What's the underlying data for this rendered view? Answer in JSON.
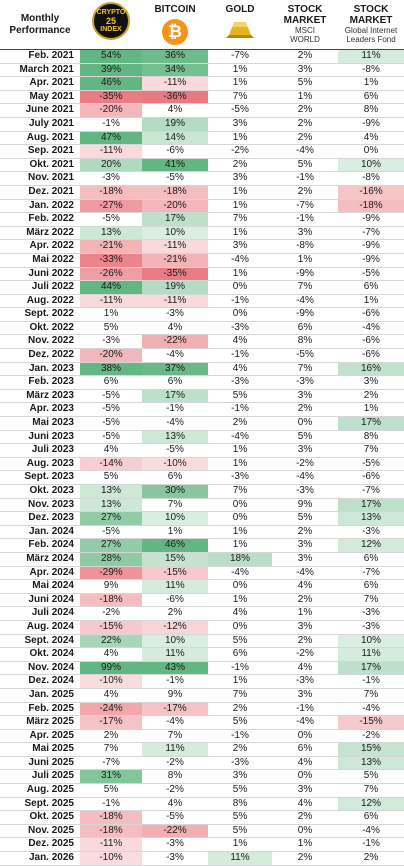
{
  "headers": {
    "month": "Monthly Performance",
    "crypto25_logo": [
      "CRYPTO",
      "25",
      "INDEX"
    ],
    "bitcoin": "BITCOIN",
    "bitcoin_symbol": "₿",
    "gold": "GOLD",
    "msci_title": "STOCK MARKET",
    "msci_sub": "MSCI WORLD",
    "gif_title": "STOCK MARKET",
    "gif_sub": "Global Internet Leaders Fond"
  },
  "colors": {
    "positive": "#2e9e57",
    "negative": "#e0404a",
    "logo_gold": "#f2c230",
    "bitcoin": "#f7931a"
  },
  "chart_data": {
    "type": "table",
    "columns": [
      "Monthly Performance",
      "CRYPTO 25 INDEX",
      "BITCOIN",
      "GOLD",
      "STOCK MARKET MSCI WORLD",
      "STOCK MARKET Global Internet Leaders Fond"
    ],
    "rows": [
      [
        "Feb. 2021",
        "54%",
        "36%",
        "-7%",
        "2%",
        "11%"
      ],
      [
        "March 2021",
        "39%",
        "34%",
        "1%",
        "3%",
        "-8%"
      ],
      [
        "Apr. 2021",
        "46%",
        "-11%",
        "1%",
        "5%",
        "1%"
      ],
      [
        "May 2021",
        "-35%",
        "-36%",
        "7%",
        "1%",
        "6%"
      ],
      [
        "June 2021",
        "-20%",
        "4%",
        "-5%",
        "2%",
        "8%"
      ],
      [
        "July 2021",
        "-1%",
        "19%",
        "3%",
        "2%",
        "-9%"
      ],
      [
        "Aug. 2021",
        "47%",
        "14%",
        "1%",
        "2%",
        "4%"
      ],
      [
        "Sep. 2021",
        "-11%",
        "-6%",
        "-2%",
        "-4%",
        "0%"
      ],
      [
        "Okt. 2021",
        "20%",
        "41%",
        "2%",
        "5%",
        "10%"
      ],
      [
        "Nov. 2021",
        "-3%",
        "-5%",
        "3%",
        "-1%",
        "-8%"
      ],
      [
        "Dez. 2021",
        "-18%",
        "-18%",
        "1%",
        "2%",
        "-16%"
      ],
      [
        "Jan. 2022",
        "-27%",
        "-20%",
        "1%",
        "-7%",
        "-18%"
      ],
      [
        "Feb. 2022",
        "-5%",
        "17%",
        "7%",
        "-1%",
        "-9%"
      ],
      [
        "März 2022",
        "13%",
        "10%",
        "1%",
        "3%",
        "-7%"
      ],
      [
        "Apr. 2022",
        "-21%",
        "-11%",
        "3%",
        "-8%",
        "-9%"
      ],
      [
        "Mai 2022",
        "-33%",
        "-21%",
        "-4%",
        "1%",
        "-9%"
      ],
      [
        "Juni 2022",
        "-26%",
        "-35%",
        "1%",
        "-9%",
        "-5%"
      ],
      [
        "Juli 2022",
        "44%",
        "19%",
        "0%",
        "7%",
        "6%"
      ],
      [
        "Aug. 2022",
        "-11%",
        "-11%",
        "-1%",
        "-4%",
        "1%"
      ],
      [
        "Sept. 2022",
        "1%",
        "-3%",
        "0%",
        "-9%",
        "-6%"
      ],
      [
        "Okt. 2022",
        "5%",
        "4%",
        "-3%",
        "6%",
        "-4%"
      ],
      [
        "Nov. 2022",
        "-3%",
        "-22%",
        "4%",
        "8%",
        "-6%"
      ],
      [
        "Dez. 2022",
        "-20%",
        "-4%",
        "-1%",
        "-5%",
        "-6%"
      ],
      [
        "Jan. 2023",
        "38%",
        "37%",
        "4%",
        "7%",
        "16%"
      ],
      [
        "Feb. 2023",
        "6%",
        "6%",
        "-3%",
        "-3%",
        "3%"
      ],
      [
        "März 2023",
        "-5%",
        "17%",
        "5%",
        "3%",
        "2%"
      ],
      [
        "Apr. 2023",
        "-5%",
        "-1%",
        "-1%",
        "2%",
        "1%"
      ],
      [
        "Mai 2023",
        "-5%",
        "-4%",
        "2%",
        "0%",
        "17%"
      ],
      [
        "Juni 2023",
        "-5%",
        "13%",
        "-4%",
        "5%",
        "8%"
      ],
      [
        "Juli 2023",
        "4%",
        "-5%",
        "1%",
        "3%",
        "7%"
      ],
      [
        "Aug. 2023",
        "-14%",
        "-10%",
        "1%",
        "-2%",
        "-5%"
      ],
      [
        "Sept. 2023",
        "5%",
        "6%",
        "-3%",
        "-4%",
        "-6%"
      ],
      [
        "Okt. 2023",
        "13%",
        "30%",
        "7%",
        "-3%",
        "-7%"
      ],
      [
        "Nov. 2023",
        "13%",
        "7%",
        "0%",
        "9%",
        "17%"
      ],
      [
        "Dez. 2023",
        "27%",
        "10%",
        "0%",
        "5%",
        "13%"
      ],
      [
        "Jan. 2024",
        "-5%",
        "1%",
        "1%",
        "2%",
        "-3%"
      ],
      [
        "Feb. 2024",
        "27%",
        "46%",
        "1%",
        "3%",
        "12%"
      ],
      [
        "März 2024",
        "28%",
        "15%",
        "18%",
        "3%",
        "6%"
      ],
      [
        "Apr. 2024",
        "-29%",
        "-15%",
        "-4%",
        "-4%",
        "-7%"
      ],
      [
        "Mai 2024",
        "9%",
        "11%",
        "0%",
        "4%",
        "6%"
      ],
      [
        "Juni 2024",
        "-18%",
        "-6%",
        "1%",
        "2%",
        "7%"
      ],
      [
        "Juli 2024",
        "-2%",
        "2%",
        "4%",
        "1%",
        "-3%"
      ],
      [
        "Aug. 2024",
        "-15%",
        "-12%",
        "0%",
        "3%",
        "-3%"
      ],
      [
        "Sept. 2024",
        "22%",
        "10%",
        "5%",
        "2%",
        "10%"
      ],
      [
        "Okt. 2024",
        "4%",
        "11%",
        "6%",
        "-2%",
        "11%"
      ],
      [
        "Nov. 2024",
        "99%",
        "43%",
        "-1%",
        "4%",
        "17%"
      ],
      [
        "Dez. 2024",
        "-10%",
        "-1%",
        "1%",
        "-3%",
        "-1%"
      ],
      [
        "Jan. 2025",
        "4%",
        "9%",
        "7%",
        "3%",
        "7%"
      ],
      [
        "Feb. 2025",
        "-24%",
        "-17%",
        "2%",
        "-1%",
        "-4%"
      ],
      [
        "März 2025",
        "-17%",
        "-4%",
        "5%",
        "-4%",
        "-15%"
      ],
      [
        "Apr. 2025",
        "2%",
        "7%",
        "-1%",
        "0%",
        "-2%"
      ],
      [
        "Mai 2025",
        "7%",
        "11%",
        "2%",
        "6%",
        "15%"
      ],
      [
        "Juni 2025",
        "-7%",
        "-2%",
        "-3%",
        "4%",
        "13%"
      ],
      [
        "Juli 2025",
        "31%",
        "8%",
        "3%",
        "0%",
        "5%"
      ],
      [
        "Aug. 2025",
        "5%",
        "-2%",
        "5%",
        "3%",
        "7%"
      ],
      [
        "Sept. 2025",
        "-1%",
        "4%",
        "8%",
        "4%",
        "12%"
      ],
      [
        "Okt. 2025",
        "-18%",
        "-5%",
        "5%",
        "2%",
        "6%"
      ],
      [
        "Nov. 2025",
        "-18%",
        "-22%",
        "5%",
        "0%",
        "-4%"
      ],
      [
        "Dez. 2025",
        "-11%",
        "-3%",
        "1%",
        "1%",
        "-1%"
      ],
      [
        "Jan. 2026",
        "-10%",
        "-3%",
        "11%",
        "2%",
        "2%"
      ]
    ]
  }
}
